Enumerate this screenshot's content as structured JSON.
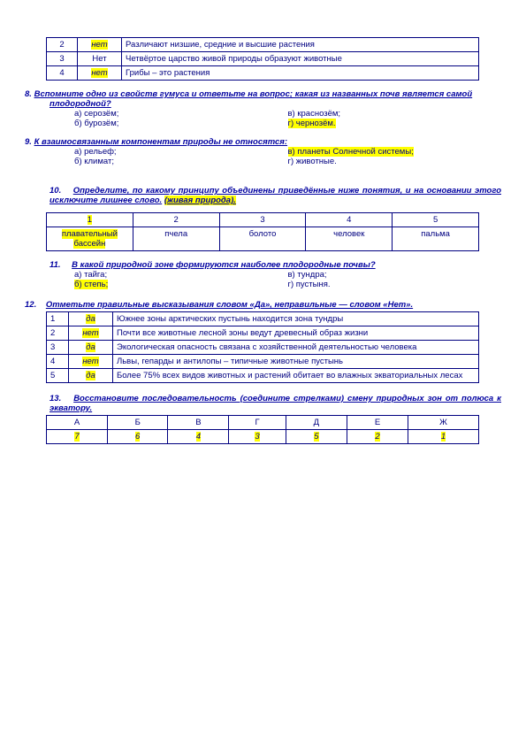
{
  "topTable": {
    "rows": [
      {
        "n": "2",
        "ans": "нет",
        "txt": "Различают низшие, средние и высшие растения",
        "hl": true
      },
      {
        "n": "3",
        "ans": "Нет",
        "txt": "Четвёртое царство живой природы образуют животные",
        "hl": false
      },
      {
        "n": "4",
        "ans": "нет",
        "txt": "Грибы – это растения",
        "hl": true
      }
    ]
  },
  "q8": {
    "num": "8.",
    "title": "Вспомните одно из свойств гумуса и ответьте на вопрос; какая из названных почв является самой плодородной?",
    "opts": [
      {
        "l": "а) серозём;",
        "r": "в) краснозём;",
        "lhl": false,
        "rhl": false
      },
      {
        "l": "б) бурозём;",
        "r": "г) чернозём.",
        "lhl": false,
        "rhl": true
      }
    ]
  },
  "q9": {
    "num": "9.",
    "title": "К взаимосвязанным компонентам природы не относятся:",
    "opts": [
      {
        "l": "а) рельеф;",
        "r": "в) планеты Солнечной системы;",
        "lhl": false,
        "rhl": true
      },
      {
        "l": "б) климат;",
        "r": "г) животные.",
        "lhl": false,
        "rhl": false
      }
    ]
  },
  "q10": {
    "num": "10.",
    "title1": "Определите, по какому принципу объединены приведённые ниже понятия, и на основании этого исключите лишнее слово.",
    "answer": "(живая природа).",
    "headers": [
      "1",
      "2",
      "3",
      "4",
      "5"
    ],
    "row": [
      "плавательный бассейн",
      "пчела",
      "болото",
      "человек",
      "пальма"
    ],
    "hlCol": 0
  },
  "q11": {
    "num": "11.",
    "title": "В какой природной зоне формируются наиболее плодородные почвы?",
    "opts": [
      {
        "l": "а) тайга;",
        "r": "в) тундра;",
        "lhl": false,
        "rhl": false
      },
      {
        "l": "б) степь;",
        "r": "г) пустыня.",
        "lhl": true,
        "rhl": false
      }
    ]
  },
  "q12": {
    "num": "12.",
    "title": "Отметьте правильные высказывания словом «Да», неправильные — словом «Нет».",
    "rows": [
      {
        "n": "1",
        "ans": "да",
        "txt": "Южнее зоны арктических пустынь находится зона тундры",
        "hl": true
      },
      {
        "n": "2",
        "ans": "нет",
        "txt": "Почти все животные лесной зоны ведут древесный образ жизни",
        "hl": true
      },
      {
        "n": "3",
        "ans": "да",
        "txt": "Экологическая опасность связана с хозяйственной деятельностью человека",
        "hl": true
      },
      {
        "n": "4",
        "ans": "нет",
        "txt": "Львы, гепарды и антилопы – типичные животные пустынь",
        "hl": true
      },
      {
        "n": "5",
        "ans": "да",
        "txt": "Более 75% всех видов животных и растений обитает во влажных экваториальных лесах",
        "hl": true
      }
    ]
  },
  "q13": {
    "num": "13.",
    "title": "Восстановите последовательность (соедините стрелками) смену природных зон от полюса к экватору.",
    "headers": [
      "А",
      "Б",
      "В",
      "Г",
      "Д",
      "Е",
      "Ж"
    ],
    "row": [
      "7",
      "6",
      "4",
      "3",
      "5",
      "2",
      "1"
    ]
  }
}
